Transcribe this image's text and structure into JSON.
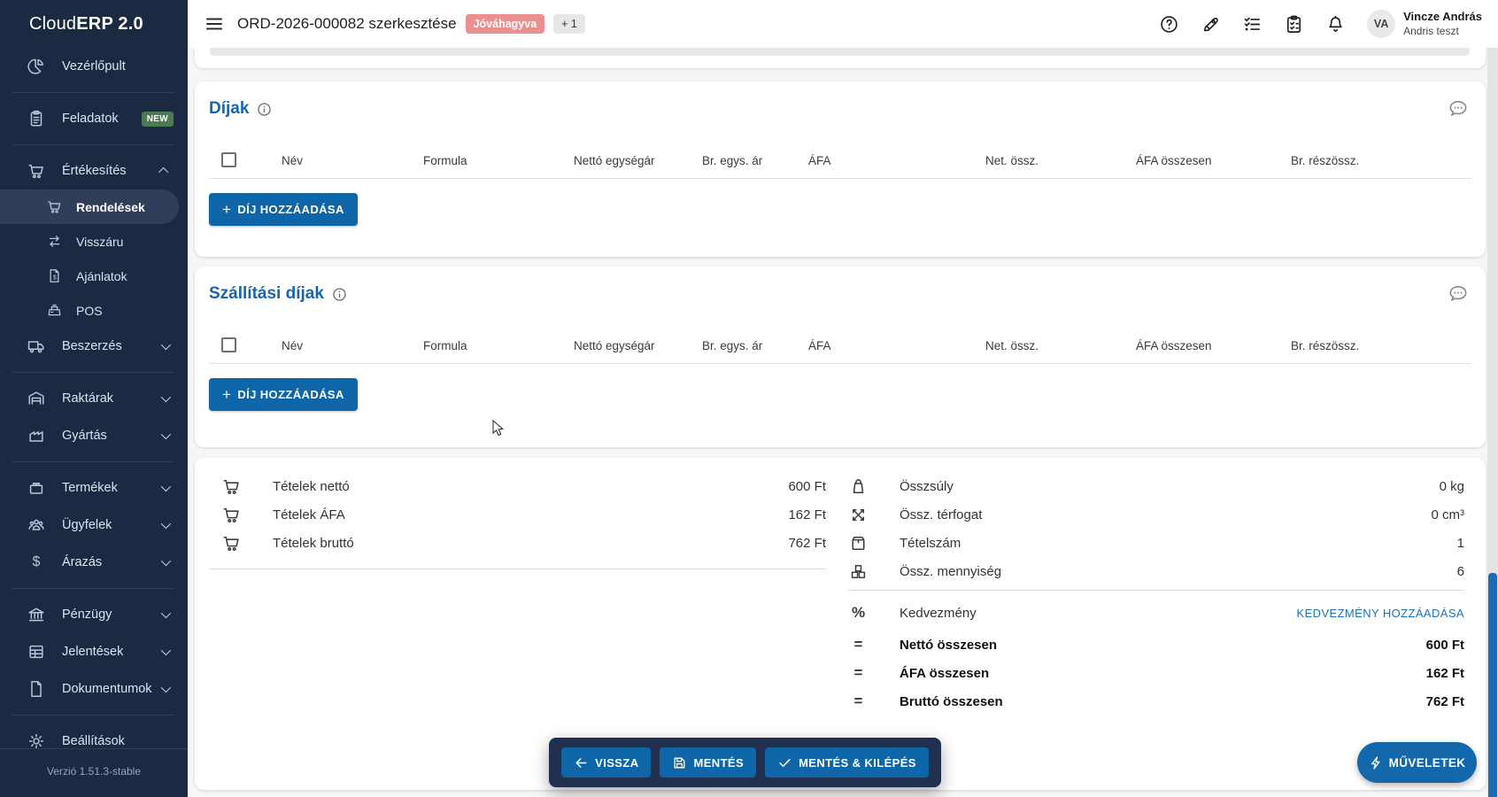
{
  "logo": {
    "prefix": "Cloud",
    "suffix": "ERP 2.0"
  },
  "version": "Verzió 1.51.3-stable",
  "sidebar": {
    "items": [
      {
        "label": "Vezérlőpult",
        "icon": "dashboard",
        "type": "item"
      },
      {
        "type": "divider"
      },
      {
        "label": "Feladatok",
        "icon": "tasks",
        "type": "item",
        "badge": "NEW"
      },
      {
        "type": "divider"
      },
      {
        "label": "Értékesítés",
        "icon": "sales",
        "type": "item",
        "chevron": "up"
      },
      {
        "label": "Rendelések",
        "icon": "orders",
        "type": "sub",
        "state": "selected"
      },
      {
        "label": "Visszáru",
        "icon": "returns",
        "type": "sub"
      },
      {
        "label": "Ajánlatok",
        "icon": "quotes",
        "type": "sub"
      },
      {
        "label": "POS",
        "icon": "pos",
        "type": "sub"
      },
      {
        "label": "Beszerzés",
        "icon": "procurement",
        "type": "item",
        "chevron": "down"
      },
      {
        "type": "divider"
      },
      {
        "label": "Raktárak",
        "icon": "warehouse",
        "type": "item",
        "chevron": "down"
      },
      {
        "label": "Gyártás",
        "icon": "manufacturing",
        "type": "item",
        "chevron": "down"
      },
      {
        "type": "divider"
      },
      {
        "label": "Termékek",
        "icon": "products",
        "type": "item",
        "chevron": "down"
      },
      {
        "label": "Ügyfelek",
        "icon": "customers",
        "type": "item",
        "chevron": "down"
      },
      {
        "label": "Árazás",
        "icon": "pricing",
        "type": "item",
        "chevron": "down"
      },
      {
        "type": "divider"
      },
      {
        "label": "Pénzügy",
        "icon": "finance",
        "type": "item",
        "chevron": "down"
      },
      {
        "label": "Jelentések",
        "icon": "reports",
        "type": "item",
        "chevron": "down"
      },
      {
        "label": "Dokumentumok",
        "icon": "documents",
        "type": "item",
        "chevron": "down"
      },
      {
        "type": "divider"
      },
      {
        "label": "Beállítások",
        "icon": "settings",
        "type": "item"
      }
    ]
  },
  "header": {
    "title": "ORD-2026-000082 szerkesztése",
    "status_badge": "Jóváhagyva",
    "more_badge": "+ 1",
    "user": {
      "initials": "VA",
      "name": "Vincze András",
      "org": "Andris teszt"
    }
  },
  "fee_table_columns": [
    "Név",
    "Formula",
    "Nettó egységár",
    "Br. egys. ár",
    "ÁFA",
    "Net. össz.",
    "ÁFA összesen",
    "Br. részössz."
  ],
  "fees": {
    "title": "Díjak",
    "add_label": "DÍJ HOZZÁADÁSA"
  },
  "shipping": {
    "title": "Szállítási díjak",
    "add_label": "DÍJ HOZZÁADÁSA"
  },
  "summary": {
    "items": [
      {
        "icon": "cart",
        "label": "Tételek nettó",
        "value": "600 Ft"
      },
      {
        "icon": "cart",
        "label": "Tételek ÁFA",
        "value": "162 Ft"
      },
      {
        "icon": "cart",
        "label": "Tételek bruttó",
        "value": "762 Ft"
      }
    ],
    "metrics": [
      {
        "icon": "weight",
        "label": "Összsúly",
        "value": "0 kg"
      },
      {
        "icon": "volume",
        "label": "Össz. térfogat",
        "value": "0 cm³"
      },
      {
        "icon": "package",
        "label": "Tételszám",
        "value": "1"
      },
      {
        "icon": "packages",
        "label": "Össz. mennyiség",
        "value": "6"
      }
    ],
    "discount": {
      "icon": "percent",
      "label": "Kedvezmény",
      "action": "KEDVEZMÉNY HOZZÁADÁSA"
    },
    "totals": [
      {
        "icon": "equals",
        "label": "Nettó összesen",
        "value": "600 Ft"
      },
      {
        "icon": "equals",
        "label": "ÁFA összesen",
        "value": "162 Ft"
      },
      {
        "icon": "equals",
        "label": "Bruttó összesen",
        "value": "762 Ft"
      }
    ]
  },
  "actions": {
    "back": "VISSZA",
    "save": "MENTÉS",
    "save_and_exit": "MENTÉS & KILÉPÉS",
    "operations": "MŰVELETEK"
  }
}
